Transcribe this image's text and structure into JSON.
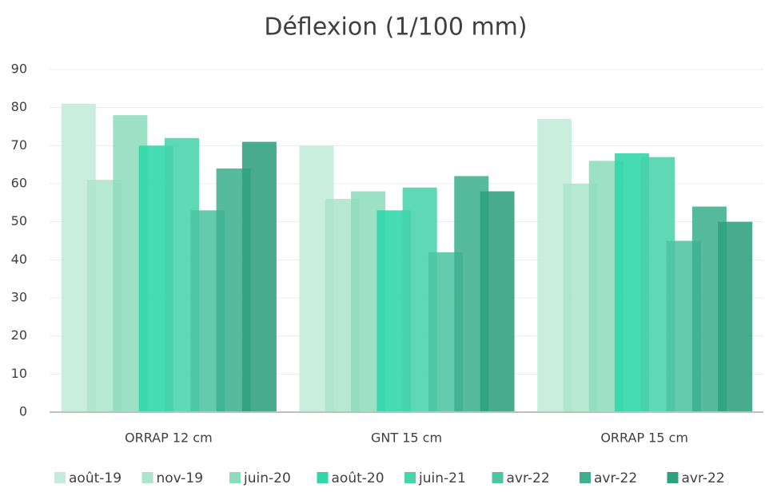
{
  "chart_data": {
    "type": "bar",
    "title": "Déflexion (1/100 mm)",
    "categories": [
      "ORRAP 12 cm",
      "GNT 15 cm",
      "ORRAP 15 cm"
    ],
    "series": [
      {
        "name": "août-19",
        "color": "#c3ecda",
        "values": [
          81,
          70,
          77
        ]
      },
      {
        "name": "nov-19",
        "color": "#ace5cc",
        "values": [
          61,
          56,
          60
        ]
      },
      {
        "name": "juin-20",
        "color": "#8edcbd",
        "values": [
          78,
          58,
          66
        ]
      },
      {
        "name": "août-20",
        "color": "#2ed6a8",
        "values": [
          70,
          53,
          68
        ]
      },
      {
        "name": "juin-21",
        "color": "#48d3ab",
        "values": [
          72,
          59,
          67
        ]
      },
      {
        "name": "avr-22",
        "color": "#4fc4a2",
        "values": [
          53,
          42,
          45
        ]
      },
      {
        "name": "avr-22",
        "color": "#3fb08f",
        "values": [
          64,
          62,
          54
        ]
      },
      {
        "name": "avr-22",
        "color": "#2fa07c",
        "values": [
          71,
          58,
          50
        ]
      }
    ],
    "ylim": [
      0,
      90
    ],
    "yticks": [
      0,
      10,
      20,
      30,
      40,
      50,
      60,
      70,
      80,
      90
    ],
    "grid": true
  }
}
